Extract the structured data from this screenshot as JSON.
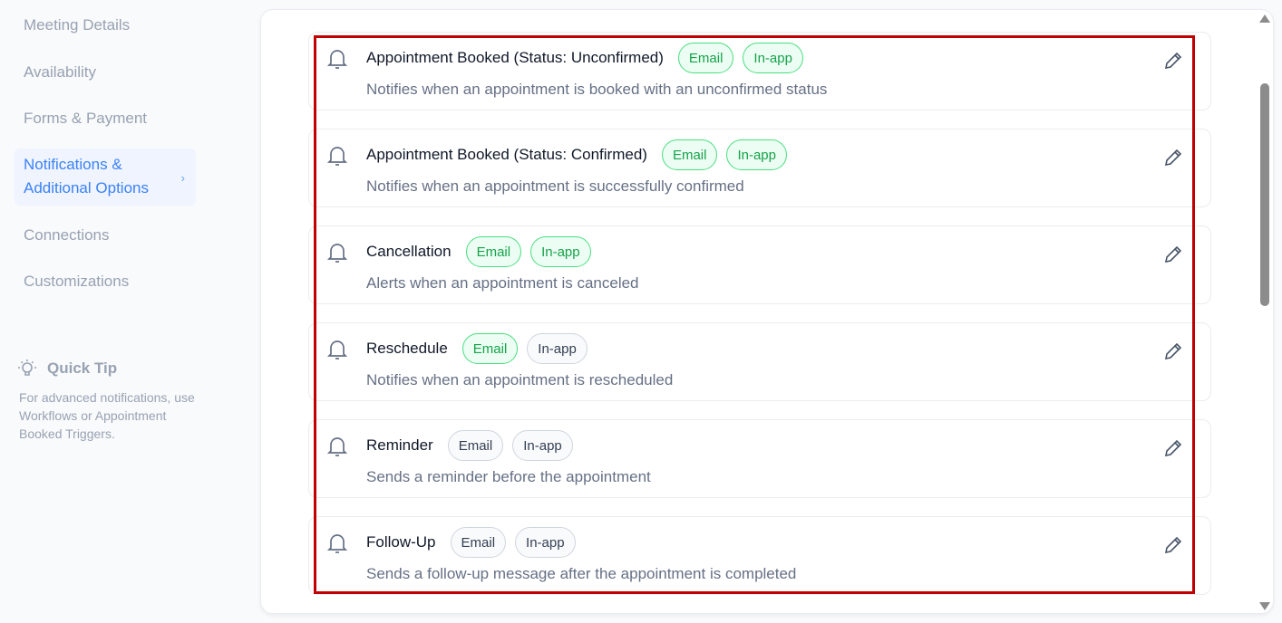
{
  "sidebar": {
    "items": [
      {
        "label": "Meeting Details"
      },
      {
        "label": "Availability"
      },
      {
        "label": "Forms & Payment"
      },
      {
        "label_line1": "Notifications &",
        "label_line2": "Additional Options",
        "active": true
      },
      {
        "label": "Connections"
      },
      {
        "label": "Customizations"
      }
    ],
    "tip": {
      "icon": "lightbulb-icon",
      "title": "Quick Tip",
      "text": "For advanced notifications, use Workflows or Appointment Booked Triggers."
    }
  },
  "colors": {
    "accent": "#3b82f6",
    "chip_active": "#16a34a",
    "highlight": "#c00000"
  },
  "notifications": [
    {
      "title": "Appointment Booked (Status: Unconfirmed)",
      "desc": "Notifies when an appointment is booked with an unconfirmed status",
      "email": "Email",
      "inapp": "In-app",
      "email_on": true,
      "inapp_on": true
    },
    {
      "title": "Appointment Booked (Status: Confirmed)",
      "desc": "Notifies when an appointment is successfully confirmed",
      "email": "Email",
      "inapp": "In-app",
      "email_on": true,
      "inapp_on": true
    },
    {
      "title": "Cancellation",
      "desc": "Alerts when an appointment is canceled",
      "email": "Email",
      "inapp": "In-app",
      "email_on": true,
      "inapp_on": true
    },
    {
      "title": "Reschedule",
      "desc": "Notifies when an appointment is rescheduled",
      "email": "Email",
      "inapp": "In-app",
      "email_on": true,
      "inapp_on": false
    },
    {
      "title": "Reminder",
      "desc": "Sends a reminder before the appointment",
      "email": "Email",
      "inapp": "In-app",
      "email_on": false,
      "inapp_on": false
    },
    {
      "title": "Follow-Up",
      "desc": "Sends a follow-up message after the appointment is completed",
      "email": "Email",
      "inapp": "In-app",
      "email_on": false,
      "inapp_on": false
    }
  ]
}
